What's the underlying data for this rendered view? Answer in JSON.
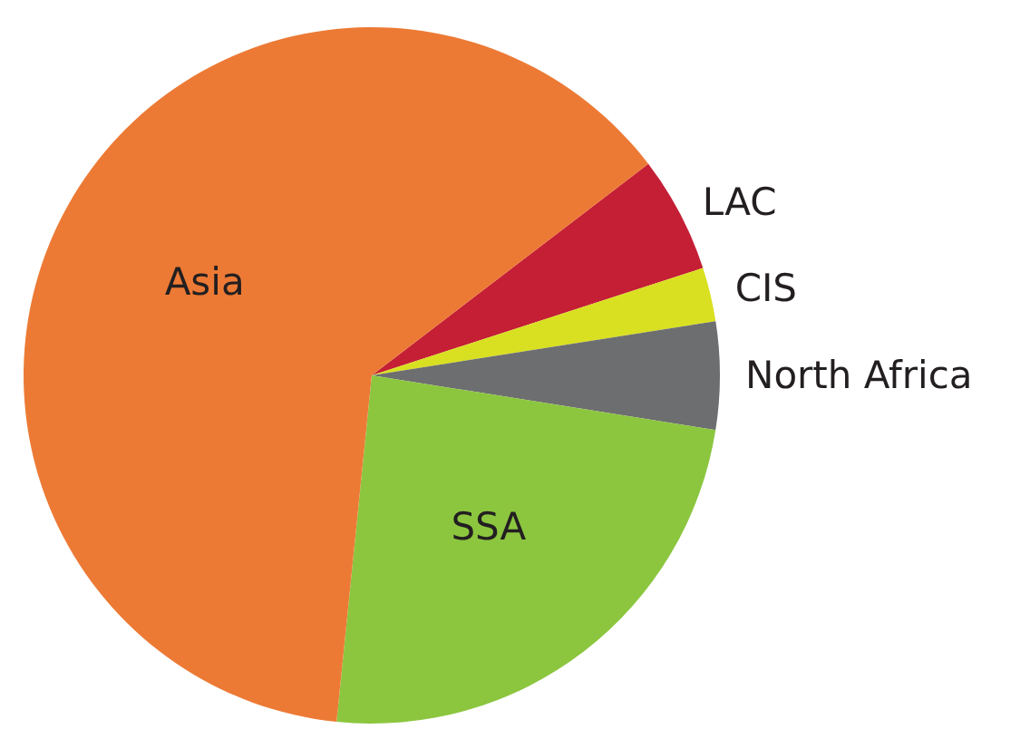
{
  "chart_data": {
    "type": "pie",
    "categories": [
      "LAC",
      "CIS",
      "North Africa",
      "SSA",
      "Asia"
    ],
    "values": [
      5.4,
      2.5,
      5.0,
      24.1,
      63.0
    ],
    "colors": [
      "#c41f35",
      "#d9e021",
      "#6d6e70",
      "#8cc63f",
      "#ec7a35"
    ]
  }
}
